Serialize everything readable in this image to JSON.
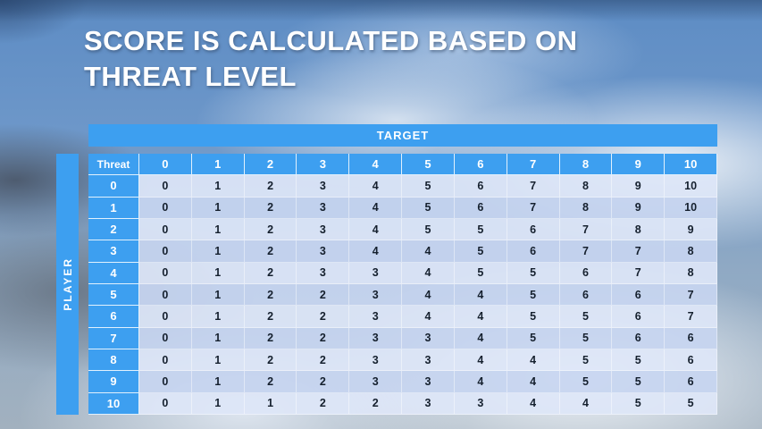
{
  "title": {
    "line1": "SCORE IS CALCULATED BASED ON",
    "line2": "THREAT LEVEL"
  },
  "axes": {
    "target_label": "TARGET",
    "player_label": "PLAYER"
  },
  "table": {
    "corner_label": "Threat",
    "col_headers": [
      "0",
      "1",
      "2",
      "3",
      "4",
      "5",
      "6",
      "7",
      "8",
      "9",
      "10"
    ],
    "row_headers": [
      "0",
      "1",
      "2",
      "3",
      "4",
      "5",
      "6",
      "7",
      "8",
      "9",
      "10"
    ],
    "rows": [
      [
        "0",
        "1",
        "2",
        "3",
        "4",
        "5",
        "6",
        "7",
        "8",
        "9",
        "10"
      ],
      [
        "0",
        "1",
        "2",
        "3",
        "4",
        "5",
        "6",
        "7",
        "8",
        "9",
        "10"
      ],
      [
        "0",
        "1",
        "2",
        "3",
        "4",
        "5",
        "5",
        "6",
        "7",
        "8",
        "9"
      ],
      [
        "0",
        "1",
        "2",
        "3",
        "4",
        "4",
        "5",
        "6",
        "7",
        "7",
        "8"
      ],
      [
        "0",
        "1",
        "2",
        "3",
        "3",
        "4",
        "5",
        "5",
        "6",
        "7",
        "8"
      ],
      [
        "0",
        "1",
        "2",
        "2",
        "3",
        "4",
        "4",
        "5",
        "6",
        "6",
        "7"
      ],
      [
        "0",
        "1",
        "2",
        "2",
        "3",
        "4",
        "4",
        "5",
        "5",
        "6",
        "7"
      ],
      [
        "0",
        "1",
        "2",
        "2",
        "3",
        "3",
        "4",
        "5",
        "5",
        "6",
        "6"
      ],
      [
        "0",
        "1",
        "2",
        "2",
        "3",
        "3",
        "4",
        "4",
        "5",
        "5",
        "6"
      ],
      [
        "0",
        "1",
        "2",
        "2",
        "3",
        "3",
        "4",
        "4",
        "5",
        "5",
        "6"
      ],
      [
        "0",
        "1",
        "1",
        "2",
        "2",
        "3",
        "3",
        "4",
        "4",
        "5",
        "5"
      ]
    ]
  },
  "colors": {
    "header_blue": "#3d9ff0",
    "band_light": "rgba(221,230,247,0.92)",
    "band_dark": "rgba(199,213,240,0.92)",
    "cell_text": "#15202e",
    "title_text": "#ffffff"
  }
}
